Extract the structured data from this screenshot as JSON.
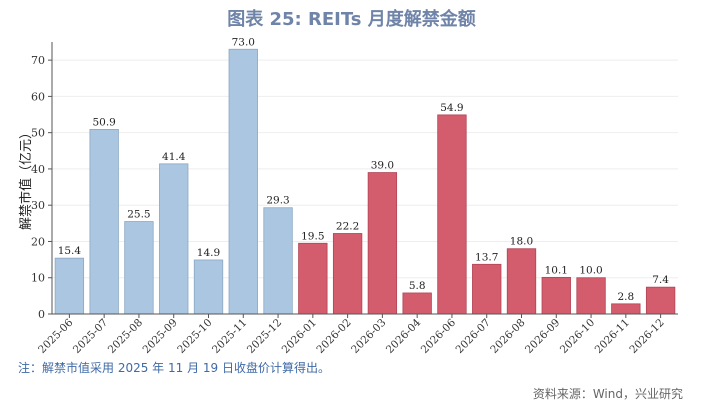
{
  "title": "图表 25: REITs 月度解禁金额",
  "note": "注：解禁市值采用 2025 年 11 月 19 日收盘价计算得出。",
  "source": "资料来源：Wind，兴业研究",
  "chart_data": {
    "type": "bar",
    "title": "图表 25: REITs 月度解禁金额",
    "ylabel": "解禁市值（亿元）",
    "xlabel": "",
    "ylim": [
      0,
      75
    ],
    "yticks": [
      0,
      10,
      20,
      30,
      40,
      50,
      60,
      70
    ],
    "grid": true,
    "categories": [
      "2025-06",
      "2025-07",
      "2025-08",
      "2025-09",
      "2025-10",
      "2025-11",
      "2025-12",
      "2026-01",
      "2026-02",
      "2026-03",
      "2026-04",
      "2026-06",
      "2026-07",
      "2026-08",
      "2026-09",
      "2026-10",
      "2026-11",
      "2026-12"
    ],
    "values": [
      15.4,
      50.9,
      25.5,
      41.4,
      14.9,
      73.0,
      29.3,
      19.5,
      22.2,
      39.0,
      5.8,
      54.9,
      13.7,
      18.0,
      10.1,
      10.0,
      2.8,
      7.4
    ],
    "labels": [
      "15.4",
      "50.9",
      "25.5",
      "41.4",
      "14.9",
      "73.0",
      "29.3",
      "19.5",
      "22.2",
      "39.0",
      "5.8",
      "54.9",
      "13.7",
      "18.0",
      "10.1",
      "10.0",
      "2.8",
      "7.4"
    ],
    "colors": {
      "past": "#abc6e0",
      "past_edge": "#8ca7c2",
      "future": "#d45d6d",
      "future_edge": "#b24454"
    },
    "past_count": 7
  }
}
